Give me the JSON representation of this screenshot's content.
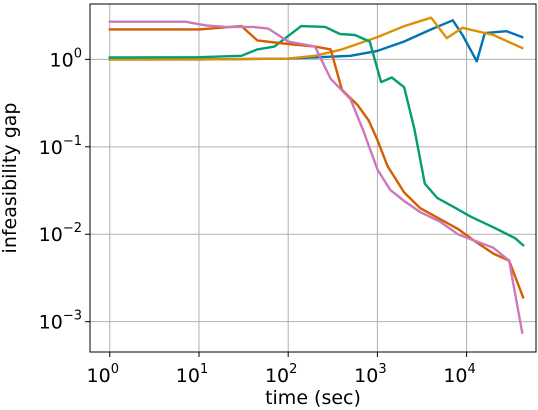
{
  "chart_data": {
    "type": "line",
    "title": "",
    "xlabel": "time (sec)",
    "ylabel": "infeasibility gap",
    "xscale": "log",
    "yscale": "log",
    "xlim": [
      0.6,
      60000
    ],
    "ylim": [
      0.00045,
      4.3
    ],
    "grid": true,
    "legend": "none",
    "x_ticks": [
      {
        "base": "10",
        "exp": "0",
        "value": 1
      },
      {
        "base": "10",
        "exp": "1",
        "value": 10
      },
      {
        "base": "10",
        "exp": "2",
        "value": 100
      },
      {
        "base": "10",
        "exp": "3",
        "value": 1000
      },
      {
        "base": "10",
        "exp": "4",
        "value": 10000
      }
    ],
    "y_ticks": [
      {
        "base": "10",
        "exp": "0",
        "value": 1
      },
      {
        "base": "10",
        "exp": "−1",
        "value": 0.1
      },
      {
        "base": "10",
        "exp": "−2",
        "value": 0.01
      },
      {
        "base": "10",
        "exp": "−3",
        "value": 0.001
      }
    ],
    "series": [
      {
        "color": "#0173b2",
        "x": [
          1,
          10,
          100,
          500,
          1000,
          2000,
          4000,
          7000,
          9000,
          13000,
          16000,
          28000,
          42000
        ],
        "y": [
          1.0,
          1.0,
          1.02,
          1.1,
          1.25,
          1.6,
          2.2,
          2.8,
          1.9,
          0.95,
          2.0,
          2.1,
          1.8
        ]
      },
      {
        "color": "#de8f05",
        "x": [
          1,
          10,
          100,
          200,
          400,
          1000,
          2000,
          4000,
          6000,
          9000,
          20000,
          42000
        ],
        "y": [
          1.0,
          1.0,
          1.02,
          1.1,
          1.3,
          1.8,
          2.4,
          3.0,
          1.75,
          2.3,
          1.9,
          1.35
        ]
      },
      {
        "color": "#029e73",
        "x": [
          1,
          10,
          30,
          45,
          70,
          140,
          260,
          380,
          560,
          820,
          1100,
          1450,
          2000,
          2600,
          3400,
          4700,
          7500,
          11000,
          20000,
          35000,
          43000
        ],
        "y": [
          1.05,
          1.06,
          1.1,
          1.3,
          1.4,
          2.4,
          2.35,
          1.95,
          1.9,
          1.6,
          0.55,
          0.62,
          0.48,
          0.16,
          0.038,
          0.026,
          0.02,
          0.016,
          0.012,
          0.009,
          0.0075
        ]
      },
      {
        "color": "#d55e00",
        "x": [
          1,
          10,
          30,
          45,
          100,
          200,
          300,
          400,
          600,
          800,
          1000,
          1300,
          2000,
          3000,
          5000,
          8000,
          12000,
          20000,
          30000,
          43000
        ],
        "y": [
          2.2,
          2.2,
          2.4,
          1.65,
          1.5,
          1.4,
          1.3,
          0.45,
          0.3,
          0.2,
          0.12,
          0.06,
          0.03,
          0.02,
          0.015,
          0.0115,
          0.0085,
          0.006,
          0.005,
          0.0019
        ]
      },
      {
        "color": "#cc78bc",
        "x": [
          1,
          7,
          12,
          20,
          40,
          60,
          100,
          200,
          300,
          500,
          700,
          1000,
          1400,
          2000,
          3000,
          5000,
          8000,
          12000,
          20000,
          30000,
          42000
        ],
        "y": [
          2.7,
          2.7,
          2.45,
          2.35,
          2.35,
          2.25,
          1.6,
          1.4,
          0.6,
          0.35,
          0.15,
          0.055,
          0.032,
          0.024,
          0.018,
          0.014,
          0.01,
          0.0085,
          0.007,
          0.005,
          0.00075
        ]
      }
    ]
  }
}
